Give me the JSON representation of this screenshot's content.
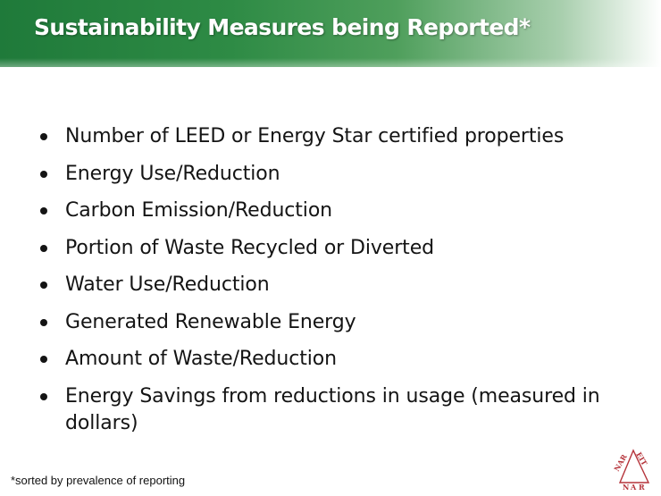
{
  "slide": {
    "title": "Sustainability Measures being Reported*",
    "bullets": [
      "Number of LEED or Energy Star certified properties",
      "Energy Use/Reduction",
      "Carbon Emission/Reduction",
      "Portion of Waste Recycled or Diverted",
      "Water Use/Reduction",
      "Generated Renewable Energy",
      "Amount of Waste/Reduction",
      "Energy Savings from reductions in usage (measured in dollars)"
    ],
    "footnote": "*sorted by prevalence of reporting"
  },
  "logo": {
    "icon": "naree-triangle-logo-icon",
    "text": "NAREIT",
    "color": "#b5333a"
  },
  "colors": {
    "title_bar_start": "#1f7a3a",
    "title_text": "#ffffff",
    "body_text": "#141414"
  }
}
